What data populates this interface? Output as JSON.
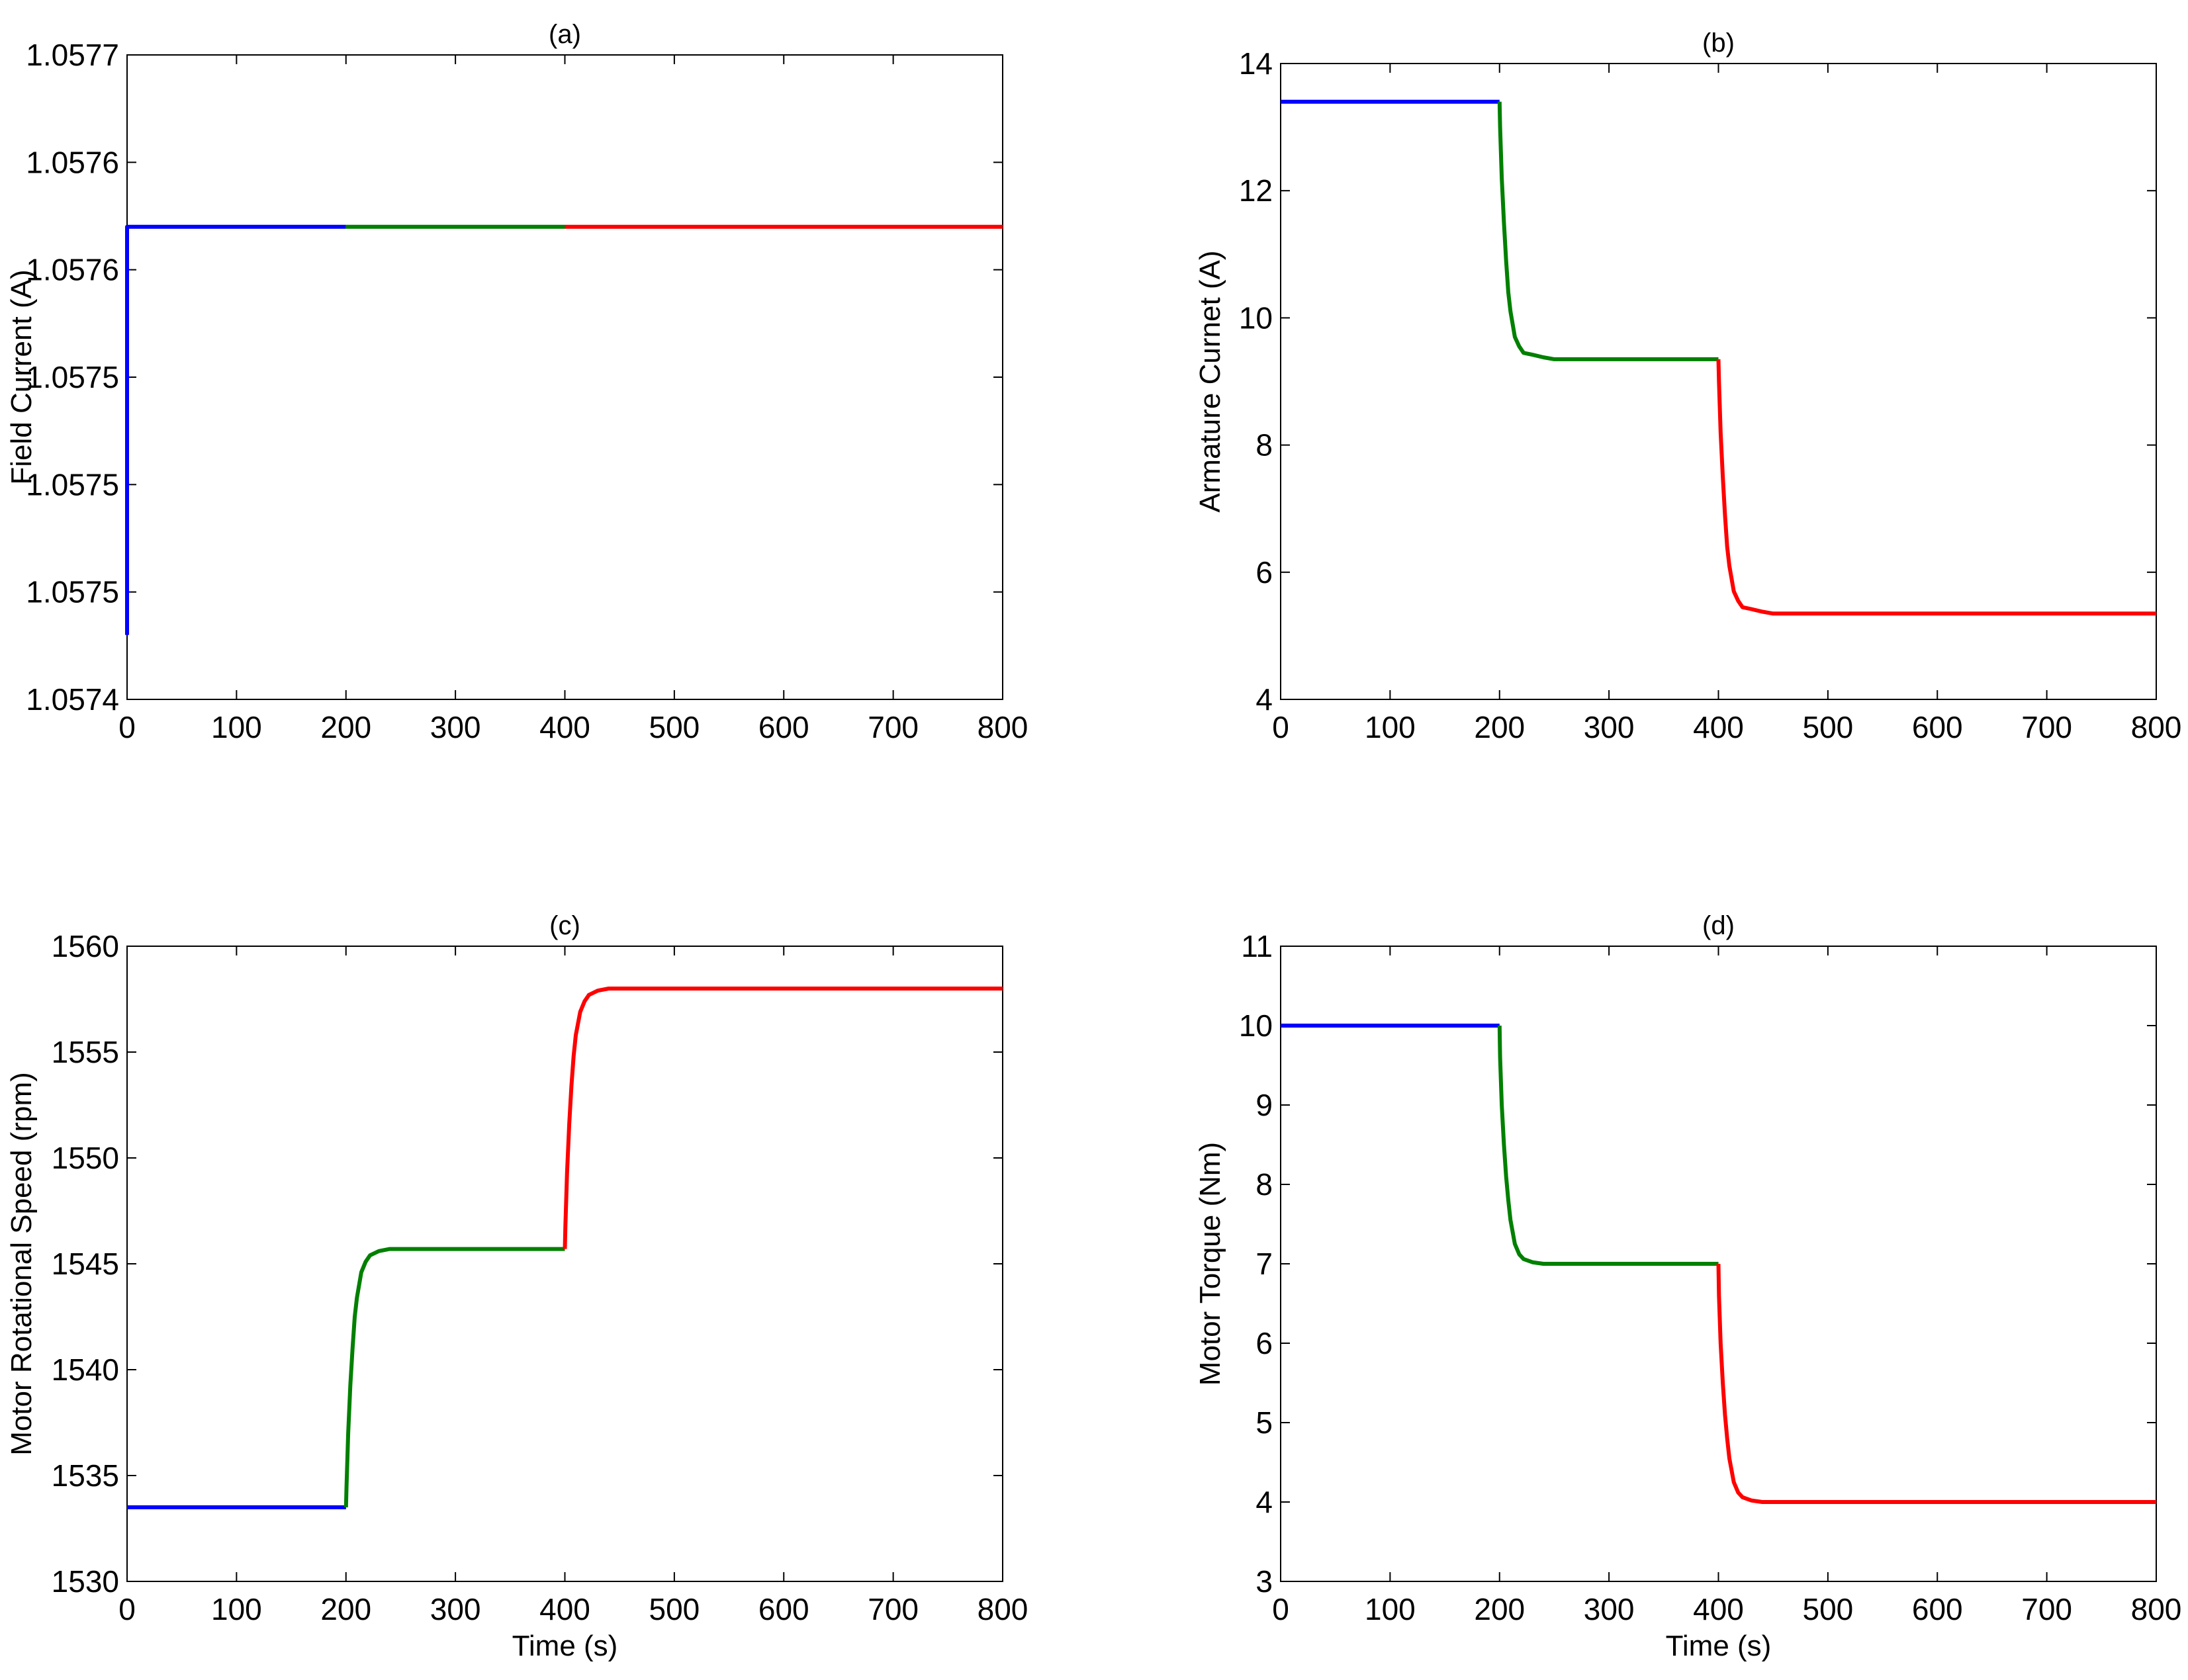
{
  "chart_data": [
    {
      "type": "line",
      "title": "(a)",
      "xlabel": "",
      "ylabel": "Field Current (A)",
      "xlim": [
        0,
        800
      ],
      "ylim": [
        1.0574,
        1.0577
      ],
      "xticks": [
        0,
        100,
        200,
        300,
        400,
        500,
        600,
        700,
        800
      ],
      "xtick_labels": [
        "0",
        "100",
        "200",
        "300",
        "400",
        "500",
        "600",
        "700",
        "800"
      ],
      "yticks": [
        1.0574,
        1.05745,
        1.0575,
        1.05755,
        1.0576,
        1.05765,
        1.0577
      ],
      "ytick_labels": [
        "1.0574",
        "1.0575",
        "1.0575",
        "1.0575",
        "1.0576",
        "1.0576",
        "1.0577"
      ],
      "grid": false,
      "series": [
        {
          "color": "#0000ff",
          "x": [
            0,
            0,
            0.5,
            200
          ],
          "y": [
            1.05743,
            1.05762,
            1.05762,
            1.05762
          ]
        },
        {
          "color": "#008000",
          "x": [
            200,
            400
          ],
          "y": [
            1.05762,
            1.05762
          ]
        },
        {
          "color": "#ff0000",
          "x": [
            400,
            800
          ],
          "y": [
            1.05762,
            1.05762
          ]
        }
      ]
    },
    {
      "type": "line",
      "title": "(b)",
      "xlabel": "",
      "ylabel": "Armature Curnet (A)",
      "xlim": [
        0,
        800
      ],
      "ylim": [
        4,
        14
      ],
      "xticks": [
        0,
        100,
        200,
        300,
        400,
        500,
        600,
        700,
        800
      ],
      "xtick_labels": [
        "0",
        "100",
        "200",
        "300",
        "400",
        "500",
        "600",
        "700",
        "800"
      ],
      "yticks": [
        4,
        6,
        8,
        10,
        12,
        14
      ],
      "ytick_labels": [
        "4",
        "6",
        "8",
        "10",
        "12",
        "14"
      ],
      "grid": false,
      "series": [
        {
          "color": "#0000ff",
          "x": [
            0,
            200
          ],
          "y": [
            13.4,
            13.4
          ]
        },
        {
          "color": "#008000",
          "x": [
            200,
            200.5,
            202,
            204,
            206,
            208,
            210,
            214,
            218,
            222,
            230,
            240,
            250,
            300,
            400
          ],
          "y": [
            13.4,
            13.0,
            12.2,
            11.5,
            10.9,
            10.4,
            10.1,
            9.7,
            9.55,
            9.45,
            9.42,
            9.38,
            9.35,
            9.35,
            9.35
          ]
        },
        {
          "color": "#ff0000",
          "x": [
            400,
            400.5,
            402,
            404,
            406,
            408,
            410,
            414,
            418,
            422,
            430,
            440,
            450,
            500,
            800
          ],
          "y": [
            9.35,
            9.0,
            8.2,
            7.5,
            6.9,
            6.4,
            6.1,
            5.7,
            5.55,
            5.45,
            5.42,
            5.38,
            5.35,
            5.35,
            5.35
          ]
        }
      ]
    },
    {
      "type": "line",
      "title": "(c)",
      "xlabel": "Time (s)",
      "ylabel": "Motor Rotational Speed (rpm)",
      "xlim": [
        0,
        800
      ],
      "ylim": [
        1530,
        1560
      ],
      "xticks": [
        0,
        100,
        200,
        300,
        400,
        500,
        600,
        700,
        800
      ],
      "xtick_labels": [
        "0",
        "100",
        "200",
        "300",
        "400",
        "500",
        "600",
        "700",
        "800"
      ],
      "yticks": [
        1530,
        1535,
        1540,
        1545,
        1550,
        1555,
        1560
      ],
      "ytick_labels": [
        "1530",
        "1535",
        "1540",
        "1545",
        "1550",
        "1555",
        "1560"
      ],
      "grid": false,
      "series": [
        {
          "color": "#0000ff",
          "x": [
            0,
            200
          ],
          "y": [
            1533.5,
            1533.5
          ]
        },
        {
          "color": "#008000",
          "x": [
            200,
            200.5,
            202,
            204,
            206,
            208,
            210,
            214,
            218,
            222,
            230,
            240,
            300,
            400
          ],
          "y": [
            1533.5,
            1534.5,
            1537.0,
            1539.3,
            1541.0,
            1542.5,
            1543.4,
            1544.6,
            1545.1,
            1545.4,
            1545.6,
            1545.7,
            1545.7,
            1545.7
          ]
        },
        {
          "color": "#ff0000",
          "x": [
            400,
            400.5,
            402,
            404,
            406,
            408,
            410,
            414,
            418,
            422,
            430,
            440,
            500,
            800
          ],
          "y": [
            1545.7,
            1546.8,
            1549.3,
            1551.6,
            1553.4,
            1554.8,
            1555.8,
            1556.9,
            1557.4,
            1557.7,
            1557.9,
            1558.0,
            1558.0,
            1558.0
          ]
        }
      ]
    },
    {
      "type": "line",
      "title": "(d)",
      "xlabel": "Time (s)",
      "ylabel": "Motor Torque (Nm)",
      "xlim": [
        0,
        800
      ],
      "ylim": [
        3,
        11
      ],
      "xticks": [
        0,
        100,
        200,
        300,
        400,
        500,
        600,
        700,
        800
      ],
      "xtick_labels": [
        "0",
        "100",
        "200",
        "300",
        "400",
        "500",
        "600",
        "700",
        "800"
      ],
      "yticks": [
        3,
        4,
        5,
        6,
        7,
        8,
        9,
        10,
        11
      ],
      "ytick_labels": [
        "3",
        "4",
        "5",
        "6",
        "7",
        "8",
        "9",
        "10",
        "11"
      ],
      "grid": false,
      "series": [
        {
          "color": "#0000ff",
          "x": [
            0,
            200
          ],
          "y": [
            10,
            10
          ]
        },
        {
          "color": "#008000",
          "x": [
            200,
            200.5,
            202,
            204,
            206,
            208,
            210,
            214,
            218,
            222,
            230,
            240,
            300,
            400
          ],
          "y": [
            10,
            9.6,
            9.0,
            8.5,
            8.1,
            7.8,
            7.55,
            7.25,
            7.12,
            7.06,
            7.02,
            7.0,
            7.0,
            7.0
          ]
        },
        {
          "color": "#ff0000",
          "x": [
            400,
            400.5,
            402,
            404,
            406,
            408,
            410,
            414,
            418,
            422,
            430,
            440,
            500,
            800
          ],
          "y": [
            7.0,
            6.6,
            6.0,
            5.5,
            5.1,
            4.8,
            4.55,
            4.25,
            4.12,
            4.06,
            4.02,
            4.0,
            4.0,
            4.0
          ]
        }
      ]
    }
  ]
}
